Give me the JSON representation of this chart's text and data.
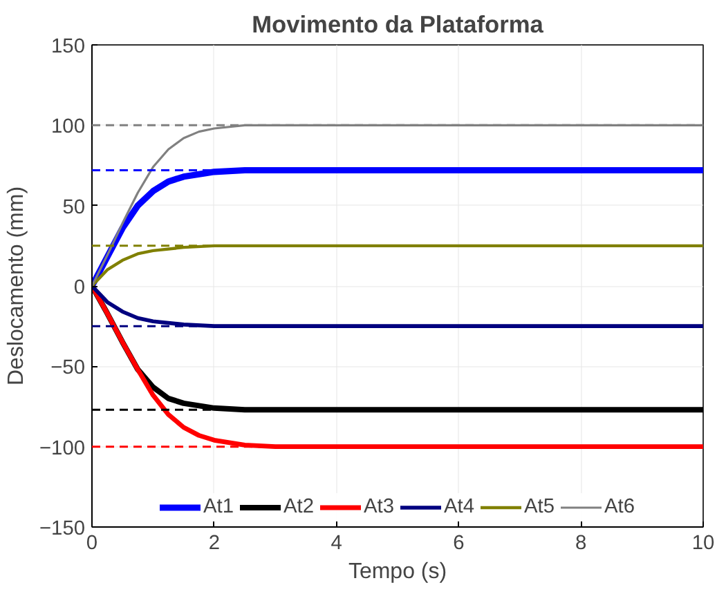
{
  "chart_data": {
    "type": "line",
    "title": "Movimento da Plataforma",
    "xlabel": "Tempo (s)",
    "ylabel": "Deslocamento (mm)",
    "xlim": [
      0,
      10
    ],
    "ylim": [
      -150,
      150
    ],
    "xticks": [
      0,
      2,
      4,
      6,
      8,
      10
    ],
    "yticks": [
      -150,
      -100,
      -50,
      0,
      50,
      100,
      150
    ],
    "grid": true,
    "legend": "bottom",
    "line_style": "solid",
    "marker": "none",
    "series": [
      {
        "name": "At1",
        "color": "#0000ff",
        "x": [
          0,
          0.25,
          0.5,
          0.75,
          1,
          1.25,
          1.5,
          2,
          2.5,
          3,
          10
        ],
        "values": [
          0,
          18,
          36,
          50,
          59,
          65,
          68,
          71,
          72,
          72,
          72
        ]
      },
      {
        "name": "At2",
        "color": "#000000",
        "x": [
          0,
          0.25,
          0.5,
          0.75,
          1,
          1.25,
          1.5,
          2,
          2.5,
          3,
          10
        ],
        "values": [
          0,
          -17,
          -35,
          -52,
          -63,
          -70,
          -73,
          -76,
          -77,
          -77,
          -77
        ]
      },
      {
        "name": "At3",
        "color": "#ff0000",
        "x": [
          0,
          0.25,
          0.5,
          0.75,
          1,
          1.25,
          1.5,
          1.75,
          2,
          2.5,
          3,
          10
        ],
        "values": [
          0,
          -17,
          -35,
          -52,
          -68,
          -80,
          -88,
          -93,
          -96,
          -99,
          -100,
          -100
        ]
      },
      {
        "name": "At4",
        "color": "#00007f",
        "x": [
          0,
          0.25,
          0.5,
          0.75,
          1,
          1.5,
          2,
          10
        ],
        "values": [
          0,
          -10,
          -16,
          -20,
          -22,
          -24,
          -25,
          -25
        ]
      },
      {
        "name": "At5",
        "color": "#808000",
        "x": [
          0,
          0.25,
          0.5,
          0.75,
          1,
          1.5,
          2,
          10
        ],
        "values": [
          0,
          10,
          16,
          20,
          22,
          24,
          25,
          25
        ]
      },
      {
        "name": "At6",
        "color": "#808080",
        "x": [
          0,
          0.25,
          0.5,
          0.75,
          1,
          1.25,
          1.5,
          1.75,
          2,
          2.5,
          3,
          10
        ],
        "values": [
          0,
          19,
          39,
          58,
          74,
          85,
          92,
          96,
          98,
          100,
          100,
          100
        ]
      }
    ],
    "ref_lines": [
      {
        "axis": "y",
        "value": 72,
        "color": "#0000ff",
        "line_style": "dashed"
      },
      {
        "axis": "y",
        "value": -77,
        "color": "#000000",
        "line_style": "dashed"
      },
      {
        "axis": "y",
        "value": -100,
        "color": "#ff0000",
        "line_style": "dashed"
      },
      {
        "axis": "y",
        "value": -25,
        "color": "#00007f",
        "line_style": "dashed"
      },
      {
        "axis": "y",
        "value": 25,
        "color": "#808000",
        "line_style": "dashed"
      },
      {
        "axis": "y",
        "value": 100,
        "color": "#808080",
        "line_style": "dashed"
      }
    ]
  }
}
